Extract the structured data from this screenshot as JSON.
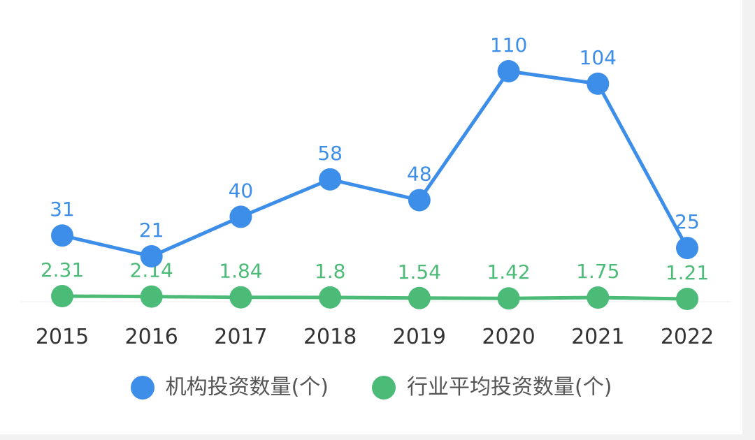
{
  "colors": {
    "series1": "#3d8ee8",
    "series2": "#4cbb78",
    "axis": "#eeeeee",
    "tick_text": "#333333",
    "background": "#ffffff"
  },
  "legend": {
    "items": [
      {
        "label": "机构投资数量(个)",
        "color": "#3d8ee8"
      },
      {
        "label": "行业平均投资数量(个)",
        "color": "#4cbb78"
      }
    ],
    "position": "bottom-center"
  },
  "chart_data": {
    "type": "line",
    "title": "",
    "xlabel": "",
    "ylabel": "",
    "categories": [
      "2015",
      "2016",
      "2017",
      "2018",
      "2019",
      "2020",
      "2021",
      "2022"
    ],
    "series": [
      {
        "name": "机构投资数量(个)",
        "values": [
          31,
          21,
          40,
          58,
          48,
          110,
          104,
          25
        ],
        "labels": [
          "31",
          "21",
          "40",
          "58",
          "48",
          "110",
          "104",
          "25"
        ],
        "color": "#3d8ee8"
      },
      {
        "name": "行业平均投资数量(个)",
        "values": [
          2.31,
          2.14,
          1.84,
          1.8,
          1.54,
          1.42,
          1.75,
          1.21
        ],
        "labels": [
          "2.31",
          "2.14",
          "1.84",
          "1.8",
          "1.54",
          "1.42",
          "1.75",
          "1.21"
        ],
        "color": "#4cbb78"
      }
    ],
    "grid": false,
    "y_axis_visible": false
  }
}
